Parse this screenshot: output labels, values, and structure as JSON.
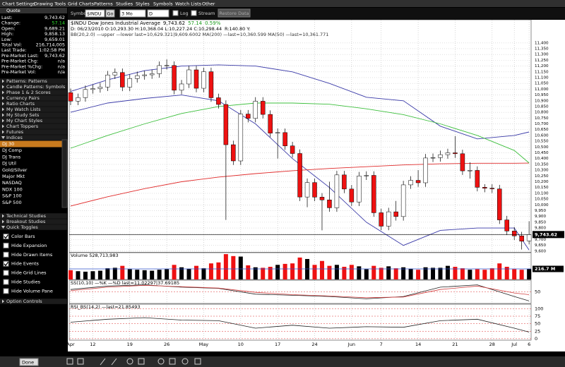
{
  "menu": [
    "Chart Settings",
    "Drawing Tools",
    "Grid Charts",
    "Patterns",
    "Studies",
    "Styles",
    "Symbols",
    "Watch Lists",
    "Other"
  ],
  "toolbar": {
    "symbol_label": "Symbol",
    "symbol": "$INDU",
    "go": "Go",
    "period": "3 Mo",
    "interval": "D",
    "log": "Log",
    "stream": "Stream",
    "button": "Restore Data"
  },
  "sidebar": {
    "quote_title": "Quote",
    "quote": [
      {
        "label": "Last:",
        "value": "9,743.62"
      },
      {
        "label": "Change:",
        "value": "57.14"
      },
      {
        "label": "Open:",
        "value": "9,689.21"
      },
      {
        "label": "High:",
        "value": "9,858.13"
      },
      {
        "label": "Low:",
        "value": "9,659.01"
      },
      {
        "label": "Total Vol:",
        "value": "216,714,005"
      },
      {
        "label": "Last Trade:",
        "value": "1:02:58 PM"
      },
      {
        "label": "Pre-Market Last:",
        "value": "9,743.62"
      },
      {
        "label": "Pre-Market Chg:",
        "value": "n/a"
      },
      {
        "label": "Pre-Market %Chg:",
        "value": "n/a"
      },
      {
        "label": "Pre-Market Vol:",
        "value": "n/a"
      }
    ],
    "sections": [
      "Patterns: Patterns",
      "Candle Patterns: Symbols",
      "Phase 1 & 2 Scores",
      "Currency Pairs",
      "Ratio Charts",
      "My Watch Lists",
      "My Study Sets",
      "My Chart Styles",
      "Chart Toppers",
      "Futures",
      "Indices"
    ],
    "indices": [
      "DJ 30",
      "DJ Comp",
      "DJ Trans",
      "DJ Util",
      "Gold/Silver",
      "Major Mkt",
      "NASDAQ",
      "NDX 100",
      "S&P 100",
      "S&P 500"
    ],
    "sections2": [
      "Technical Studies",
      "Breakout Studies",
      "Quick Toggles"
    ],
    "toggles": [
      {
        "label": "Color Bars",
        "checked": true
      },
      {
        "label": "Hide Expansion",
        "checked": false
      },
      {
        "label": "Hide Drawn Items",
        "checked": false
      },
      {
        "label": "Hide Events",
        "checked": true
      },
      {
        "label": "Hide Grid Lines",
        "checked": false
      },
      {
        "label": "Hide Studies",
        "checked": false
      },
      {
        "label": "Hide Volume Pane",
        "checked": false
      }
    ],
    "footer": "Option Controls"
  },
  "bottom": {
    "select": "Done"
  },
  "chart_data": {
    "type": "candlestick",
    "title": "$INDU Dow Jones Industrial Average",
    "last": "9,743.62",
    "change": "57.14",
    "change_pct": "0.59%",
    "info": "D: 06/23/2010 O:10,293.30 H:10,368.04 L:10,227.24 C:10,298.44",
    "info2": "R:140.80 Y:",
    "study_legend": "BB(20,2.0) —upper —lower last=10,629.321|9,609.6002 MA(200) —last=10,360.599 MA(50) —last=10,361.771",
    "up_color": "#ffffff",
    "down_color": "#ee1111",
    "ylim": [
      9590,
      11600
    ],
    "yticks": [
      {
        "value": 9600,
        "label": "9,600"
      },
      {
        "value": 9650,
        "label": "9,650"
      },
      {
        "value": 9700,
        "label": "9,700"
      },
      {
        "value": 9750,
        "label": "9,750"
      },
      {
        "value": 9800,
        "label": "9,800"
      },
      {
        "value": 9850,
        "label": "9,850"
      },
      {
        "value": 9900,
        "label": "9,900"
      },
      {
        "value": 9950,
        "label": "9,950"
      },
      {
        "value": 10000,
        "label": "10,000"
      },
      {
        "value": 10050,
        "label": "10,050"
      },
      {
        "value": 10100,
        "label": "10,100"
      },
      {
        "value": 10150,
        "label": "10,150"
      },
      {
        "value": 10200,
        "label": "10,200"
      },
      {
        "value": 10250,
        "label": "10,250"
      },
      {
        "value": 10300,
        "label": "10,300"
      },
      {
        "value": 10350,
        "label": "10,350"
      },
      {
        "value": 10400,
        "label": "10,400"
      },
      {
        "value": 10450,
        "label": "10,450"
      },
      {
        "value": 10500,
        "label": "10,500"
      },
      {
        "value": 10550,
        "label": "10,550"
      },
      {
        "value": 10600,
        "label": "10,600"
      },
      {
        "value": 10650,
        "label": "10,650"
      },
      {
        "value": 10700,
        "label": "10,700"
      },
      {
        "value": 10750,
        "label": "10,750"
      },
      {
        "value": 10800,
        "label": "10,800"
      },
      {
        "value": 10850,
        "label": "10,850"
      },
      {
        "value": 10900,
        "label": "10,900"
      },
      {
        "value": 10950,
        "label": "10,950"
      },
      {
        "value": 11000,
        "label": "11,000"
      },
      {
        "value": 11050,
        "label": "11,050"
      },
      {
        "value": 11100,
        "label": "11,100"
      },
      {
        "value": 11150,
        "label": "11,150"
      },
      {
        "value": 11200,
        "label": "11,200"
      },
      {
        "value": 11250,
        "label": "11,250"
      },
      {
        "value": 11300,
        "label": "11,300"
      },
      {
        "value": 11350,
        "label": "11,350"
      },
      {
        "value": 11400,
        "label": "11,400"
      }
    ],
    "xticks": [
      {
        "value": 0,
        "label": "Apr"
      },
      {
        "value": 3,
        "label": "12"
      },
      {
        "value": 8,
        "label": "19"
      },
      {
        "value": 13,
        "label": "26"
      },
      {
        "value": 18,
        "label": "May"
      },
      {
        "value": 23,
        "label": "10"
      },
      {
        "value": 28,
        "label": "17"
      },
      {
        "value": 33,
        "label": "24"
      },
      {
        "value": 38,
        "label": "Jun"
      },
      {
        "value": 42,
        "label": "7"
      },
      {
        "value": 47,
        "label": "14"
      },
      {
        "value": 52,
        "label": "21"
      },
      {
        "value": 57,
        "label": "28"
      },
      {
        "value": 60,
        "label": "Jul"
      },
      {
        "value": 62,
        "label": "6"
      }
    ],
    "grid": true,
    "open": [
      10970,
      10897,
      10927,
      10997,
      11005,
      11019,
      11123,
      11144,
      11018,
      11092,
      11117,
      11124,
      11134,
      11204,
      11205,
      10991,
      11045,
      11167,
      11008,
      11151,
      10926,
      10868,
      10520,
      10380,
      10785,
      10748,
      10896,
      10782,
      10620,
      10625,
      10510,
      10444,
      10068,
      10193,
      10067,
      10043,
      9975,
      10259,
      10137,
      10025,
      10250,
      10255,
      9932,
      9816,
      9940,
      9899,
      10173,
      10212,
      10191,
      10405,
      10409,
      10434,
      10450,
      10442,
      10293.3,
      10298,
      10152,
      10144,
      10138,
      9870,
      9774,
      9732,
      9689.21
    ],
    "high": [
      11005,
      10962,
      11032,
      11040,
      11054,
      11158,
      11179,
      11179,
      11127,
      11152,
      11159,
      11169,
      11239,
      11258,
      11240,
      11080,
      11202,
      11202,
      11186,
      11186,
      10961,
      10903,
      10555,
      10820,
      10820,
      10931,
      10931,
      10817,
      10660,
      10660,
      10545,
      10479,
      10228,
      10228,
      10102,
      10200,
      10294,
      10294,
      10172,
      10285,
      10290,
      10290,
      9967,
      9975,
      10034,
      10208,
      10247,
      10300,
      10440,
      10444,
      10469,
      10485,
      10594,
      10477,
      10368.04,
      10333,
      10179,
      10179,
      10173,
      9905,
      9809,
      9767,
      9858.13
    ],
    "low": [
      10862,
      10862,
      10892,
      10962,
      10970,
      10984,
      11088,
      10983,
      10983,
      11057,
      11082,
      11089,
      11099,
      11169,
      10956,
      10956,
      11010,
      10973,
      10973,
      10891,
      10833,
      9870,
      10345,
      10345,
      10713,
      10713,
      10747,
      10585,
      10400,
      10475,
      10409,
      10033,
      9980,
      10032,
      9780,
      9940,
      9940,
      10102,
      9990,
      9990,
      10215,
      9897,
      9781,
      9781,
      9864,
      9864,
      10138,
      10156,
      10156,
      10370,
      10374,
      10399,
      10407,
      10259,
      10227.24,
      10117,
      10109,
      10103,
      9835,
      9739,
      9697,
      9614,
      9659.01
    ],
    "close": [
      10897,
      10927,
      10997,
      11005,
      11019,
      11123,
      11144,
      11018,
      11092,
      11117,
      11124,
      11134,
      11204,
      11205,
      10991,
      11045,
      11167,
      11008,
      11151,
      10926,
      10868,
      10520,
      10380,
      10785,
      10748,
      10896,
      10782,
      10620,
      10625,
      10510,
      10444,
      10068,
      10193,
      10067,
      10043,
      9975,
      10259,
      10137,
      10025,
      10250,
      10255,
      9932,
      9816,
      9940,
      9899,
      10173,
      10212,
      10191,
      10405,
      10409,
      10434,
      10450,
      10442,
      10294,
      10298.44,
      10152,
      10144,
      10138,
      9870,
      9774,
      9732,
      9686,
      9743.62
    ],
    "overlay_x": [
      0,
      5,
      10,
      15,
      20,
      25,
      30,
      35,
      40,
      45,
      50,
      55,
      60,
      62
    ],
    "overlays": [
      {
        "color": "#3a3aa8",
        "values": [
          10980,
          11080,
          11160,
          11200,
          11210,
          11200,
          11150,
          11050,
          10930,
          10900,
          10680,
          10570,
          10600,
          10630
        ]
      },
      {
        "color": "#3a3aa8",
        "values": [
          10800,
          10880,
          10920,
          10950,
          10900,
          10700,
          10400,
          10150,
          9850,
          9650,
          9780,
          9800,
          9800,
          9610
        ]
      },
      {
        "color": "#e02a2a",
        "values": [
          9990,
          10070,
          10140,
          10200,
          10240,
          10270,
          10295,
          10315,
          10330,
          10345,
          10355,
          10360,
          10360,
          10361
        ]
      },
      {
        "color": "#3cbf3c",
        "values": [
          10490,
          10600,
          10700,
          10790,
          10850,
          10880,
          10880,
          10870,
          10830,
          10780,
          10700,
          10600,
          10470,
          10362
        ]
      }
    ],
    "volume": {
      "label": "Volume 528,713,983",
      "last_label": "216.7 M",
      "ylim": [
        0,
        550
      ],
      "values": [
        190,
        170,
        160,
        170,
        180,
        230,
        240,
        280,
        210,
        200,
        190,
        180,
        200,
        210,
        300,
        250,
        220,
        280,
        230,
        330,
        350,
        520,
        480,
        470,
        290,
        250,
        240,
        260,
        300,
        320,
        330,
        450,
        420,
        300,
        380,
        280,
        300,
        260,
        300,
        270,
        210,
        280,
        240,
        270,
        230,
        250,
        220,
        200,
        250,
        240,
        240,
        280,
        260,
        230,
        200,
        210,
        200,
        230,
        330,
        260,
        210,
        200,
        216.7
      ]
    },
    "ss": {
      "label": "SS(10,10) —%K —%D last=11.02297|37.69185",
      "ylim": [
        0,
        100
      ],
      "yticks": [
        50
      ],
      "series": [
        {
          "color": "#222222",
          "values": [
            60,
            75,
            80,
            70,
            65,
            40,
            35,
            30,
            20,
            30,
            70,
            80,
            30,
            11
          ]
        },
        {
          "color": "#d04040",
          "values": [
            55,
            70,
            78,
            72,
            66,
            48,
            38,
            32,
            25,
            28,
            60,
            75,
            45,
            38
          ]
        }
      ]
    },
    "rsi": {
      "label": "RSI_BS(14,2) —last=21.85493",
      "ylim": [
        -5,
        115
      ],
      "yticks": [
        100,
        75,
        50,
        25,
        0
      ],
      "series": [
        {
          "color": "#222222",
          "values": [
            55,
            65,
            70,
            62,
            60,
            35,
            45,
            35,
            40,
            38,
            60,
            65,
            35,
            22
          ]
        }
      ]
    }
  }
}
